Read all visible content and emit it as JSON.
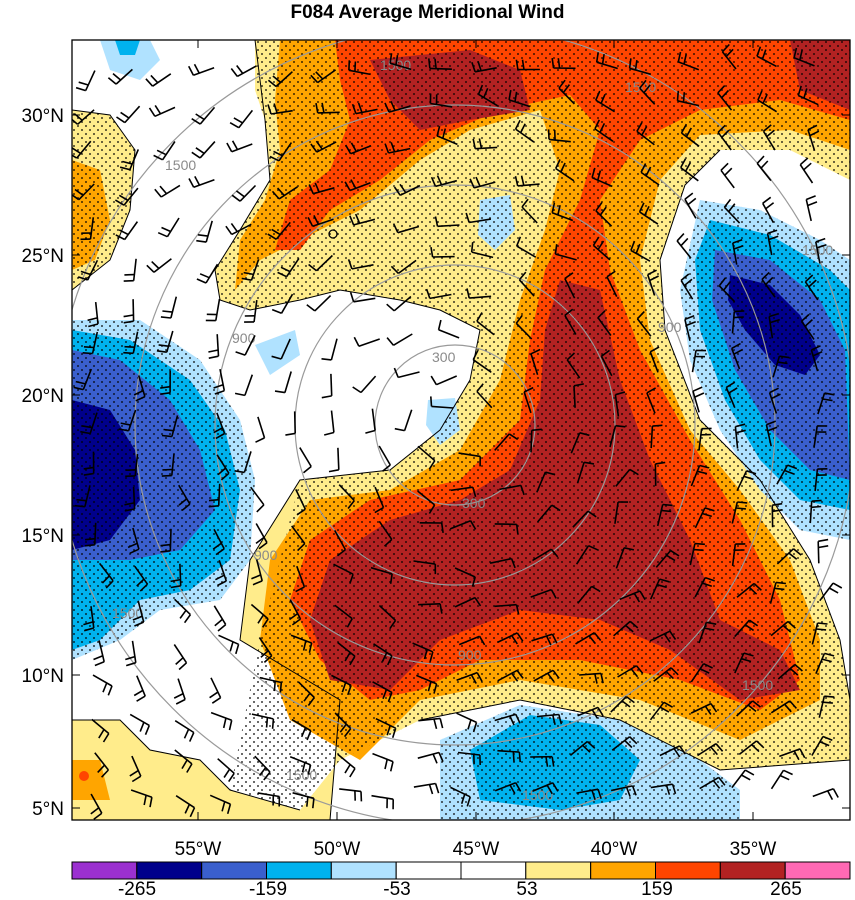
{
  "title": "F084 Average Meridional Wind",
  "lat_labels": [
    "30°N",
    "25°N",
    "20°N",
    "15°N",
    "10°N",
    "5°N"
  ],
  "lon_labels": [
    "55°W",
    "50°W",
    "45°W",
    "40°W",
    "35°W"
  ],
  "colorbar": {
    "labels": [
      "-265",
      "-159",
      "-53",
      "53",
      "159",
      "265"
    ],
    "colors": [
      "#9b30d0",
      "#00008b",
      "#3a5fcd",
      "#00b2ee",
      "#b0e2ff",
      "#ffffff",
      "#ffffff",
      "#ffec8b",
      "#ffa500",
      "#ff4500",
      "#b22222",
      "#ff69b4"
    ]
  },
  "ring_labels": [
    "300",
    "300",
    "900",
    "900",
    "900",
    "900",
    "1500",
    "1500",
    "1500",
    "1500",
    "1500",
    "1500",
    "1500",
    "1500"
  ],
  "colors": {
    "dark_red": "#b22222",
    "red_orange": "#ff4500",
    "orange": "#ffa500",
    "light_yellow": "#ffec8b",
    "light_blue": "#b0e2ff",
    "blue": "#00b2ee",
    "mid_blue": "#3a5fcd",
    "navy": "#00008b",
    "ring_gray": "#9a9a9a"
  }
}
